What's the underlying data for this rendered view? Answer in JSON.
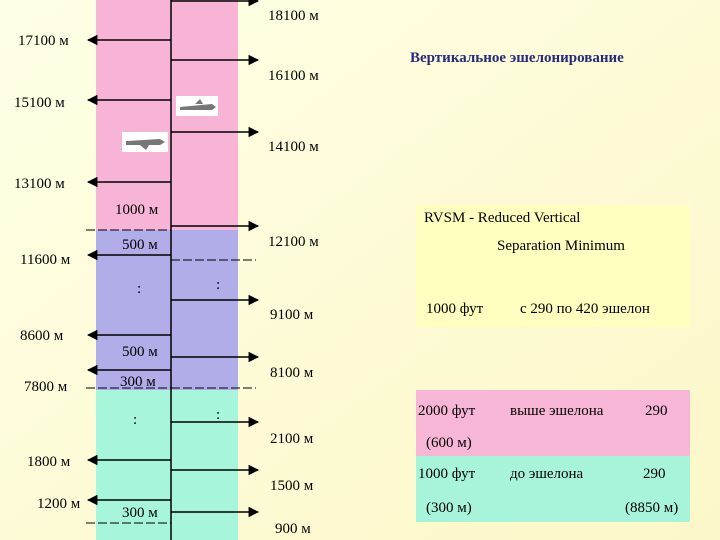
{
  "title": "Вертикальное эшелонирование",
  "levels": {
    "right": [
      "18100 м",
      "16100 м",
      "14100 м",
      "12100 м",
      "9100 м",
      "8100 м",
      "2100 м",
      "1500 м",
      "900 м"
    ],
    "left": [
      "17100 м",
      "15100 м",
      "13100 м",
      "11600 м",
      "8600 м",
      "7800 м",
      "1800 м",
      "1200 м"
    ],
    "separations": [
      "1000 м",
      "500 м",
      "500 м",
      "300 м",
      "300 м"
    ],
    "ellipsis": [
      ":",
      ":",
      ":",
      ":"
    ]
  },
  "rvsm": {
    "line1": "RVSM -  Reduced Vertical",
    "line2": "Separation Minimum",
    "feet": "1000 фут",
    "range": "с 290 по 420 эшелон"
  },
  "above": {
    "feet": "2000 фут",
    "text": "выше эшелона",
    "level": "290",
    "meters": "(600 м)"
  },
  "below": {
    "feet": "1000 фут",
    "text": "до эшелона",
    "level": "290",
    "meters": "(300 м)",
    "alt": "(8850 м)"
  }
}
